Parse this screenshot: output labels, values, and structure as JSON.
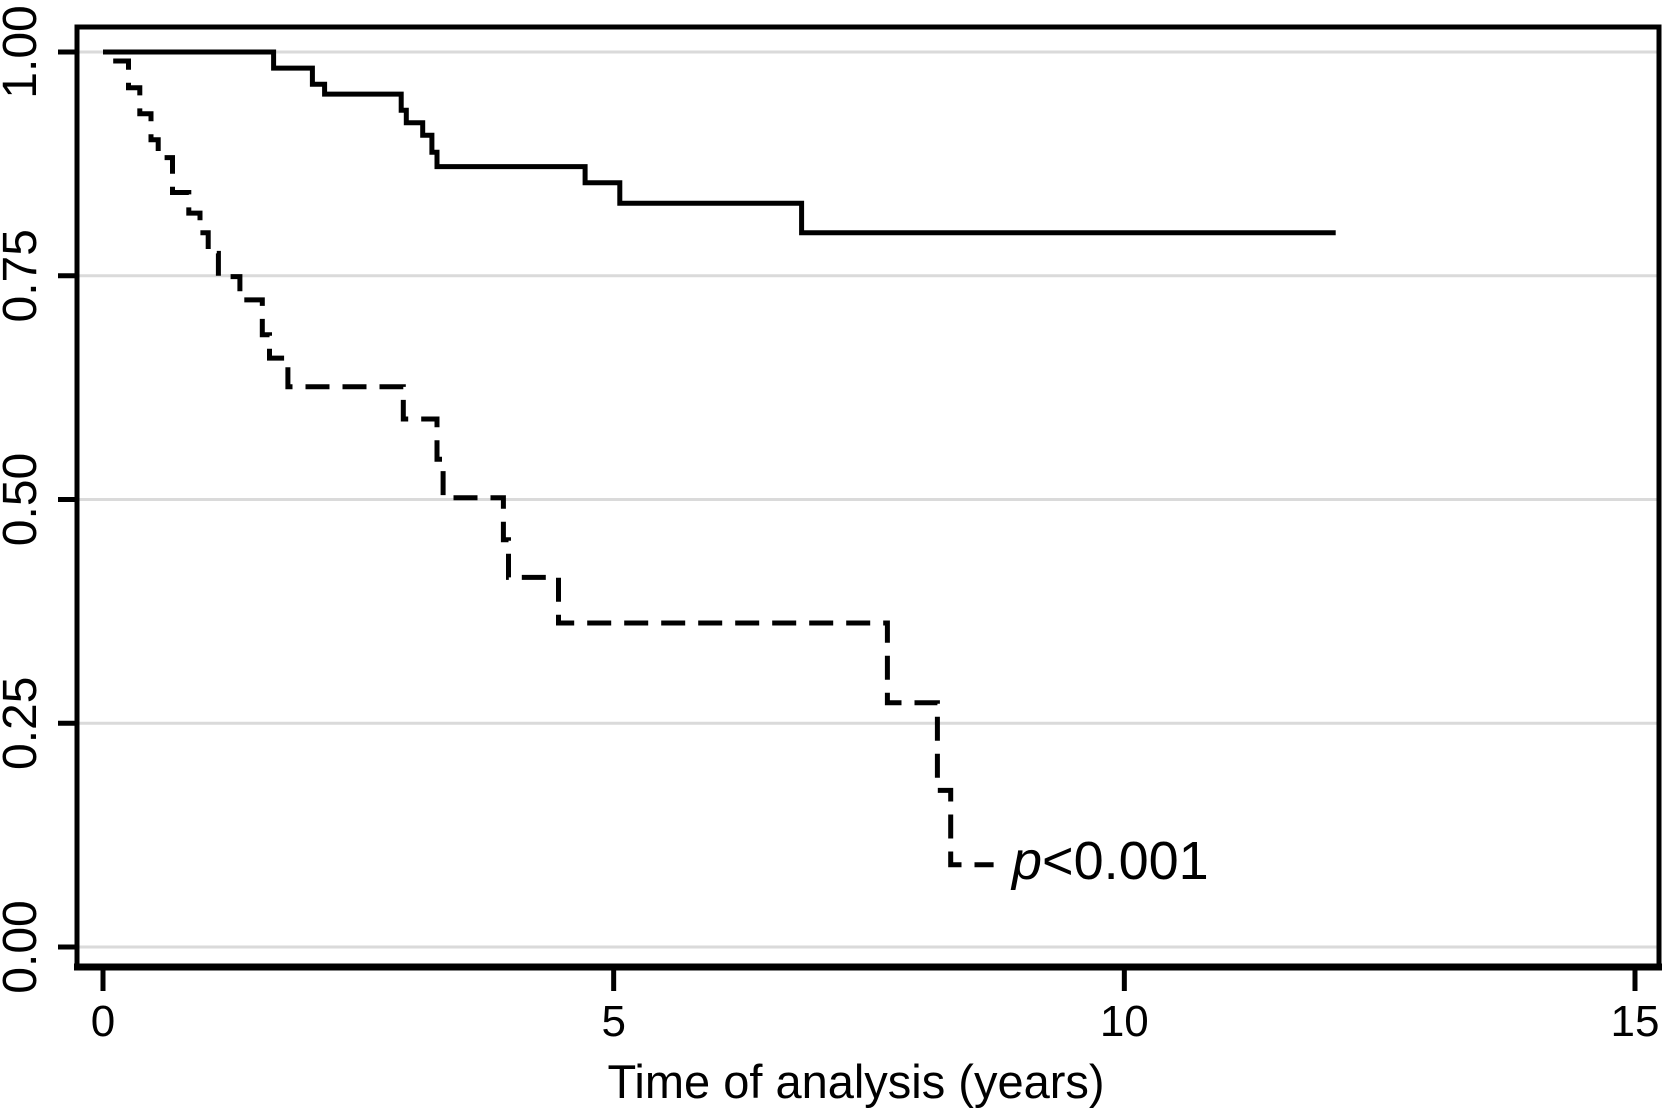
{
  "chart_data": {
    "type": "line",
    "subtype": "kaplan-meier-step-curves",
    "title": "",
    "xlabel": "Time of analysis (years)",
    "ylabel": "",
    "xlim": [
      0,
      15
    ],
    "ylim": [
      0.0,
      1.0
    ],
    "grid": "horizontal-light-gray",
    "legend": "none",
    "gridline_color": "#dadada",
    "curve_color": "#000000",
    "x_ticks": [
      {
        "value": 0,
        "label": "0"
      },
      {
        "value": 5,
        "label": "5"
      },
      {
        "value": 10,
        "label": "10"
      },
      {
        "value": 15,
        "label": "15"
      }
    ],
    "y_ticks": [
      {
        "value": 0.0,
        "label": "0.00"
      },
      {
        "value": 0.25,
        "label": "0.25"
      },
      {
        "value": 0.5,
        "label": "0.50"
      },
      {
        "value": 0.75,
        "label": "0.75"
      },
      {
        "value": 1.0,
        "label": "1.00"
      }
    ],
    "annotation": {
      "italic": "p",
      "rest": "<0.001",
      "full_text": "p<0.001",
      "x_year": 8.9,
      "y_value": 0.076
    },
    "series": [
      {
        "name": "upper-group-solid",
        "line_style": "solid",
        "steps_years_survival": [
          [
            0.0,
            1.0
          ],
          [
            1.67,
            0.982
          ],
          [
            2.05,
            0.964
          ],
          [
            2.17,
            0.953
          ],
          [
            2.92,
            0.935
          ],
          [
            2.97,
            0.921
          ],
          [
            3.13,
            0.907
          ],
          [
            3.22,
            0.888
          ],
          [
            3.27,
            0.872
          ],
          [
            4.72,
            0.854
          ],
          [
            5.06,
            0.831
          ],
          [
            6.84,
            0.798
          ],
          [
            12.07,
            0.798
          ]
        ]
      },
      {
        "name": "lower-group-dashed",
        "line_style": "dashed",
        "steps_years_survival": [
          [
            0.1,
            0.99
          ],
          [
            0.25,
            0.96
          ],
          [
            0.36,
            0.931
          ],
          [
            0.47,
            0.902
          ],
          [
            0.54,
            0.882
          ],
          [
            0.68,
            0.843
          ],
          [
            0.84,
            0.82
          ],
          [
            0.95,
            0.798
          ],
          [
            1.03,
            0.775
          ],
          [
            1.13,
            0.749
          ],
          [
            1.34,
            0.723
          ],
          [
            1.56,
            0.684
          ],
          [
            1.63,
            0.658
          ],
          [
            1.81,
            0.626
          ],
          [
            2.94,
            0.59
          ],
          [
            3.27,
            0.545
          ],
          [
            3.33,
            0.502
          ],
          [
            3.92,
            0.455
          ],
          [
            3.97,
            0.413
          ],
          [
            4.46,
            0.362
          ],
          [
            7.68,
            0.273
          ],
          [
            8.17,
            0.175
          ],
          [
            8.3,
            0.092
          ],
          [
            8.72,
            0.092
          ]
        ]
      }
    ]
  }
}
